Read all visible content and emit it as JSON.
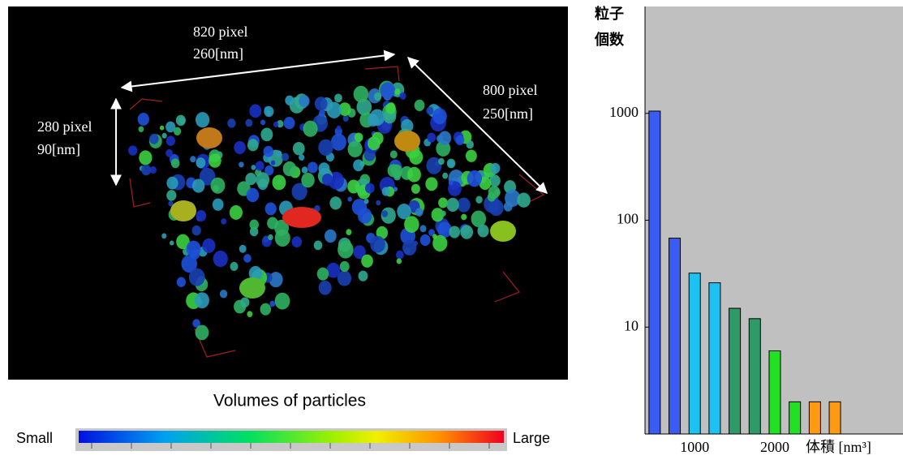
{
  "image": {
    "dimension_labels": [
      [
        "820 pixel",
        "260[nm]"
      ],
      [
        "800 pixel",
        "250[nm]"
      ],
      [
        "280 pixel",
        "90[nm]"
      ]
    ]
  },
  "colorbar": {
    "title": "Volumes of particles",
    "min_label": "Small",
    "max_label": "Large"
  },
  "chart_data": {
    "type": "bar",
    "y_label": [
      "粒子",
      "個数"
    ],
    "x_label": "体積 [nm³]",
    "x": [
      500,
      750,
      1000,
      1250,
      1500,
      1750,
      2000,
      2250,
      2500,
      2750
    ],
    "values": [
      1050,
      68,
      32,
      26,
      15,
      12,
      6,
      2,
      2,
      2
    ],
    "colors": [
      "#3a5cf2",
      "#3a5cf2",
      "#1ec2f2",
      "#1ec2f2",
      "#2e9a68",
      "#2e9a68",
      "#22e022",
      "#22e022",
      "#ff9a12",
      "#ff9a12"
    ],
    "xlim": [
      380,
      3600
    ],
    "xticks": [
      1000,
      2000
    ],
    "ylim": [
      1,
      10000
    ],
    "yticks": [
      10,
      100,
      1000
    ],
    "log_scale": true
  }
}
